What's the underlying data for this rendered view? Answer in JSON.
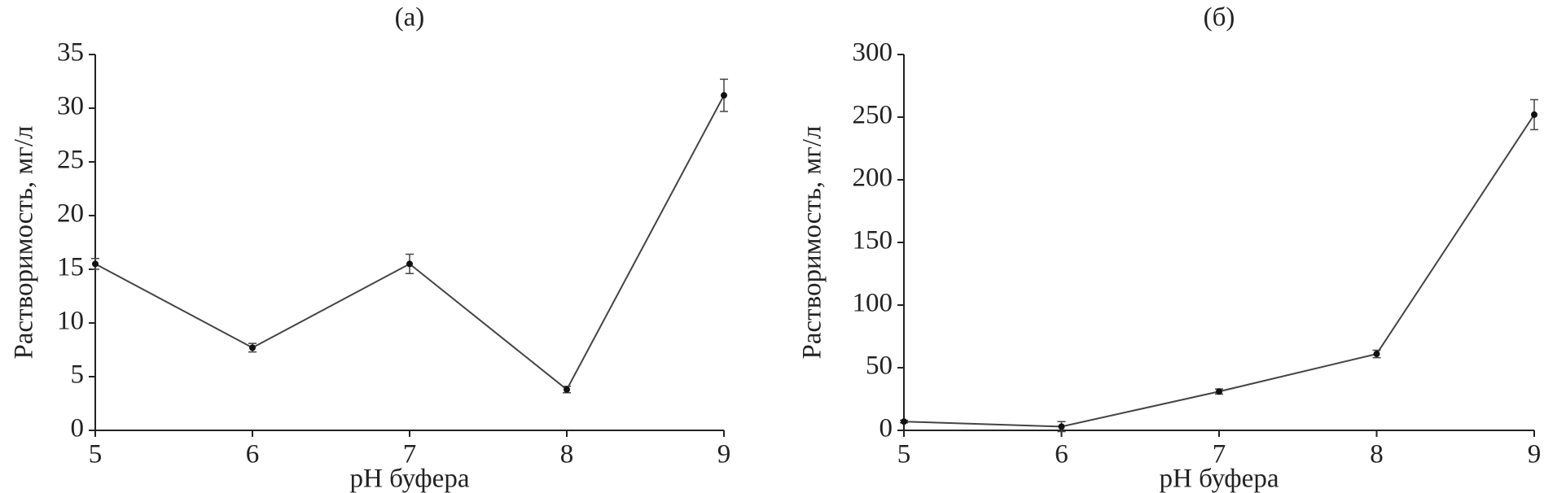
{
  "chart_data": [
    {
      "type": "line",
      "title": "(а)",
      "xlabel": "pH буфера",
      "ylabel": "Растворимость, мг/л",
      "x": [
        5,
        6,
        7,
        8,
        9
      ],
      "values": [
        15.5,
        7.7,
        15.5,
        3.8,
        31.2
      ],
      "errors": [
        0.5,
        0.4,
        0.9,
        0.3,
        1.5
      ],
      "color": "#444444",
      "xlim": [
        5,
        9
      ],
      "ylim": [
        0,
        35
      ],
      "xticks": [
        5,
        6,
        7,
        8,
        9
      ],
      "yticks": [
        0,
        5,
        10,
        15,
        20,
        25,
        30,
        35
      ]
    },
    {
      "type": "line",
      "title": "(б)",
      "xlabel": "pH буфера",
      "ylabel": "Растворимость, мг/л",
      "x": [
        5,
        6,
        7,
        8,
        9
      ],
      "values": [
        7,
        3,
        31,
        61,
        252
      ],
      "errors": [
        1,
        4,
        2,
        3,
        12
      ],
      "color": "#444444",
      "xlim": [
        5,
        9
      ],
      "ylim": [
        0,
        300
      ],
      "xticks": [
        5,
        6,
        7,
        8,
        9
      ],
      "yticks": [
        0,
        50,
        100,
        150,
        200,
        250,
        300
      ]
    }
  ]
}
